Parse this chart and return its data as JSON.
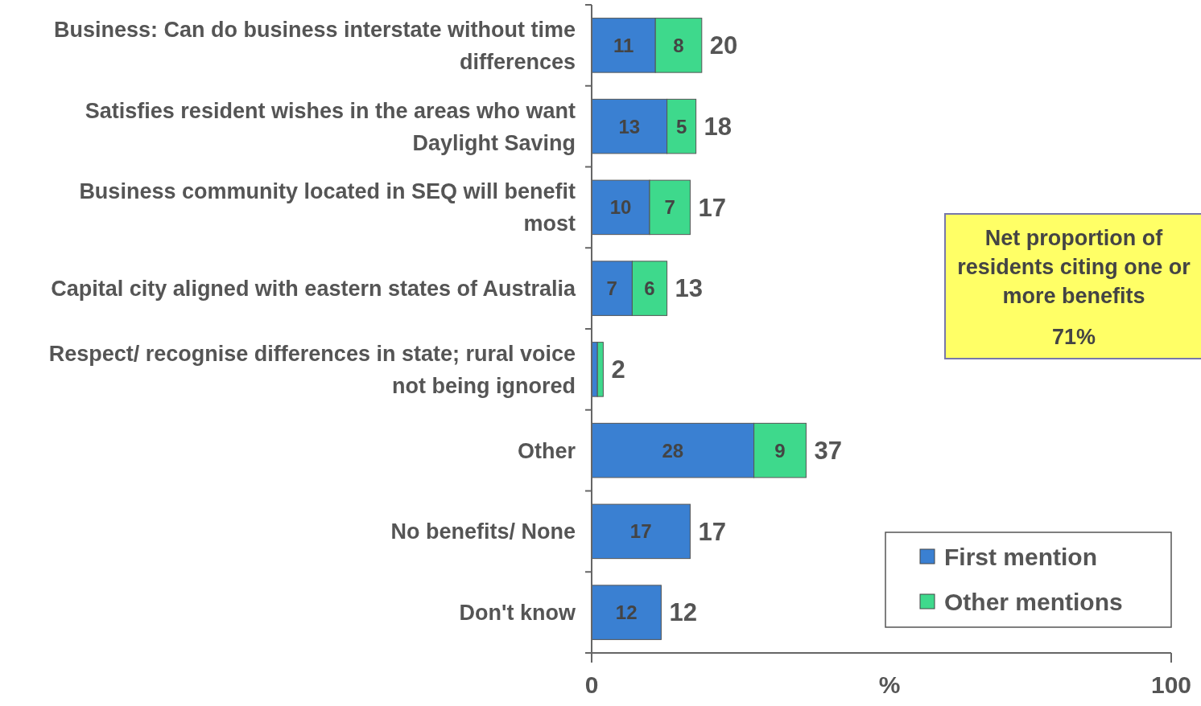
{
  "chart_data": {
    "type": "bar",
    "orientation": "horizontal",
    "stacked": true,
    "categories": [
      "Business: Can do business interstate without time differences",
      "Satisfies resident wishes in the areas who want Daylight Saving",
      "Business community located in SEQ will benefit most",
      "Capital city aligned with eastern states of Australia",
      "Respect/ recognise differences in state; rural voice not being ignored",
      "Other",
      "No benefits/ None",
      "Don't know"
    ],
    "series": [
      {
        "name": "First mention",
        "color": "#3a80d2",
        "values": [
          11,
          13,
          10,
          7,
          1,
          28,
          17,
          12
        ],
        "value_labels": [
          "11",
          "13",
          "10",
          "7",
          null,
          "28",
          "17",
          "12"
        ]
      },
      {
        "name": "Other mentions",
        "color": "#3ed98c",
        "values": [
          8,
          5,
          7,
          6,
          1,
          9,
          null,
          null
        ],
        "value_labels": [
          "8",
          "5",
          "7",
          "6",
          null,
          "9",
          null,
          null
        ]
      }
    ],
    "totals": [
      "20",
      "18",
      "17",
      "13",
      "2",
      "37",
      "17",
      "12"
    ],
    "xlim": [
      0,
      100
    ],
    "xticks": [
      0,
      100
    ],
    "xlabel": "%",
    "legend": "bottom right",
    "annotations": [
      "Net proportion of residents citing one or more benefits",
      "71%"
    ]
  }
}
